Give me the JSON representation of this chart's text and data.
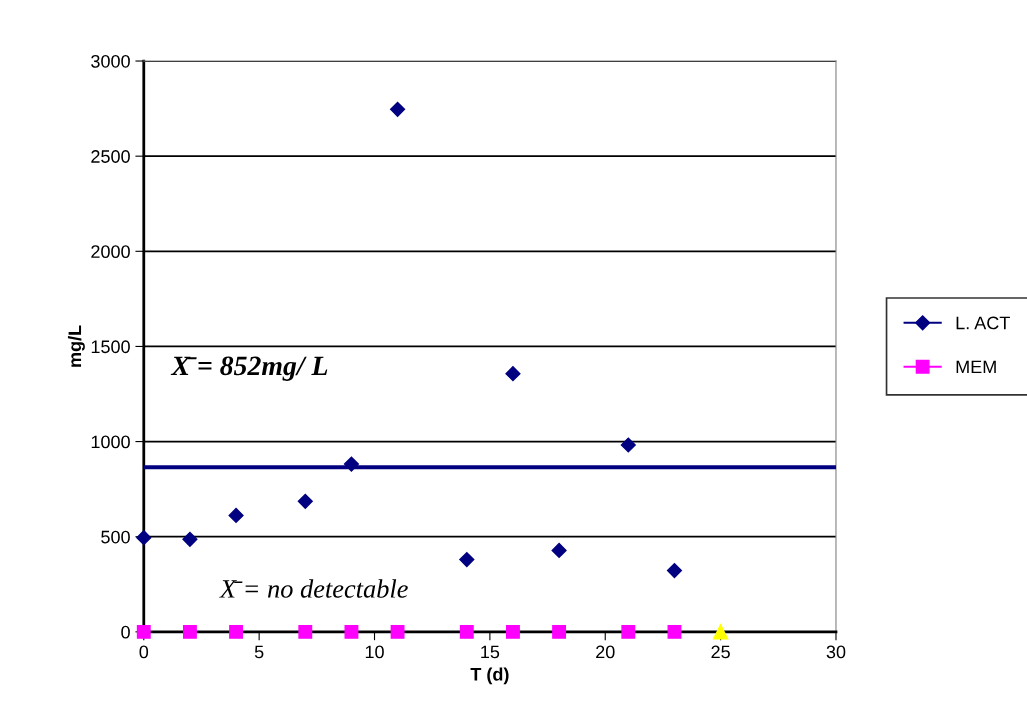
{
  "chart_data": {
    "type": "scatter",
    "xlabel": "T (d)",
    "ylabel": "mg/L",
    "xlim": [
      0,
      30
    ],
    "xticks": [
      0,
      5,
      10,
      15,
      20,
      25,
      30
    ],
    "ylim": [
      0,
      3000
    ],
    "yticks": [
      0,
      500,
      1000,
      1500,
      2000,
      2500,
      3000
    ],
    "grid": "y",
    "legend": "right",
    "series": [
      {
        "name": "L. ACT",
        "color": "#000080",
        "marker": "diamond",
        "x": [
          0,
          2,
          4,
          7,
          9,
          11,
          14,
          16,
          18,
          21,
          23
        ],
        "values": [
          495,
          486,
          612,
          686,
          882,
          2746,
          380,
          1357,
          428,
          982,
          322
        ]
      },
      {
        "name": "MEM",
        "color": "#ff00ff",
        "marker": "square",
        "x": [
          0,
          2,
          4,
          7,
          9,
          11,
          14,
          16,
          18,
          21,
          23
        ],
        "values": [
          0,
          0,
          0,
          0,
          0,
          0,
          0,
          0,
          0,
          0,
          0
        ]
      },
      {
        "color": "#ffff00",
        "marker": "triangle",
        "x": [
          25
        ],
        "values": [
          0
        ]
      }
    ],
    "ref_lines": [
      {
        "axis": "y",
        "value": 865,
        "color": "#000080"
      }
    ],
    "annotations": [
      "X̄ = 852mg/ L",
      "X̄ = no detectable"
    ]
  }
}
